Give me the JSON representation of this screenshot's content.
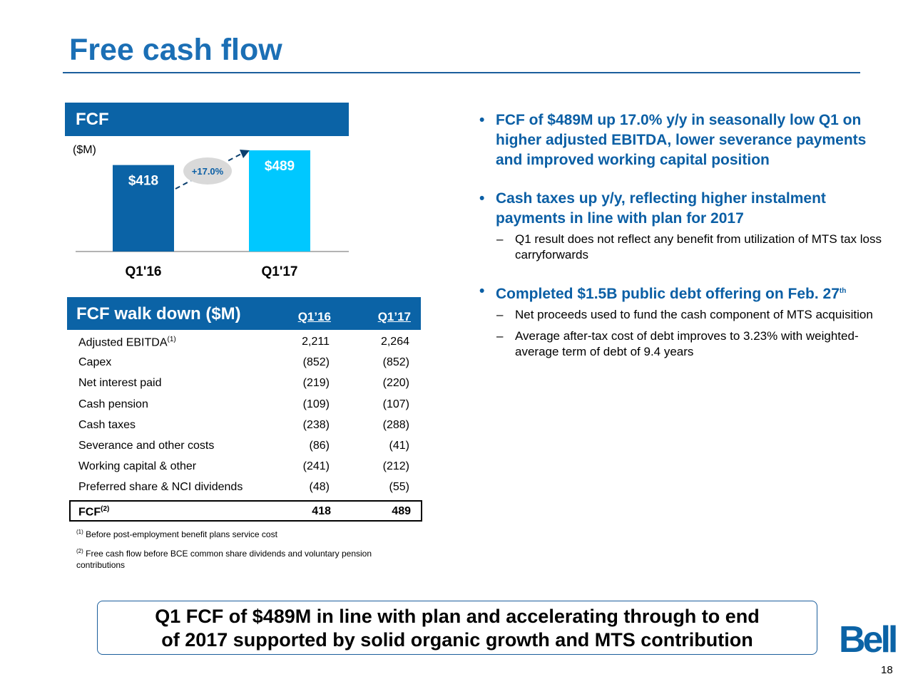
{
  "slide": {
    "title": "Free cash flow",
    "page_number": "18",
    "logo_text": "Bell"
  },
  "fcf_chart": {
    "header": "FCF",
    "unit": "($M)",
    "growth_label": "+17.0%",
    "bar_labels": [
      "$418",
      "$489"
    ]
  },
  "chart_data": {
    "type": "bar",
    "title": "FCF",
    "ylabel": "($M)",
    "categories": [
      "Q1'16",
      "Q1'17"
    ],
    "values": [
      418,
      489
    ],
    "colors": [
      "#0B63A6",
      "#00C8FF"
    ],
    "annotation": "+17.0%",
    "ylim": [
      0,
      520
    ]
  },
  "walk_down": {
    "title": "FCF walk down ($M)",
    "col1": "Q1’16",
    "col2": "Q1’17",
    "rows": [
      {
        "label": "Adjusted EBITDA",
        "sup": "(1)",
        "q116": "2,211",
        "q117": "2,264"
      },
      {
        "label": "Capex",
        "sup": "",
        "q116": "(852)",
        "q117": "(852)"
      },
      {
        "label": "Net interest paid",
        "sup": "",
        "q116": "(219)",
        "q117": "(220)"
      },
      {
        "label": "Cash pension",
        "sup": "",
        "q116": "(109)",
        "q117": "(107)"
      },
      {
        "label": "Cash taxes",
        "sup": "",
        "q116": "(238)",
        "q117": "(288)"
      },
      {
        "label": "Severance and other costs",
        "sup": "",
        "q116": "(86)",
        "q117": "(41)"
      },
      {
        "label": "Working capital & other",
        "sup": "",
        "q116": "(241)",
        "q117": "(212)"
      },
      {
        "label": "Preferred share & NCI dividends",
        "sup": "",
        "q116": "(48)",
        "q117": "(55)"
      }
    ],
    "total": {
      "label": "FCF",
      "sup": "(2)",
      "q116": "418",
      "q117": "489"
    },
    "footnotes": [
      {
        "mark": "(1)",
        "text": "Before post-employment benefit plans service cost"
      },
      {
        "mark": "(2)",
        "text": "Free cash flow before BCE common share dividends and voluntary pension contributions"
      }
    ]
  },
  "bullets": [
    {
      "text": "FCF of $489M up 17.0% y/y in seasonally low Q1 on higher adjusted EBITDA, lower severance payments and improved working capital position",
      "sup": "",
      "subs": []
    },
    {
      "text": "Cash taxes up y/y, reflecting higher instalment payments in line with plan for 2017",
      "sup": "",
      "subs": [
        "Q1 result does not reflect any benefit from utilization of MTS tax loss carryforwards"
      ]
    },
    {
      "text": "Completed $1.5B public debt offering on Feb. 27",
      "sup": "th",
      "subs": [
        "Net proceeds used to fund the cash component of MTS acquisition",
        "Average after-tax cost of debt improves to 3.23% with weighted-average term of debt of 9.4 years"
      ]
    }
  ],
  "conclusion": {
    "line1": "Q1 FCF of $489M in line with plan and accelerating through to end",
    "line2": "of 2017 supported by solid organic growth and MTS contribution"
  }
}
